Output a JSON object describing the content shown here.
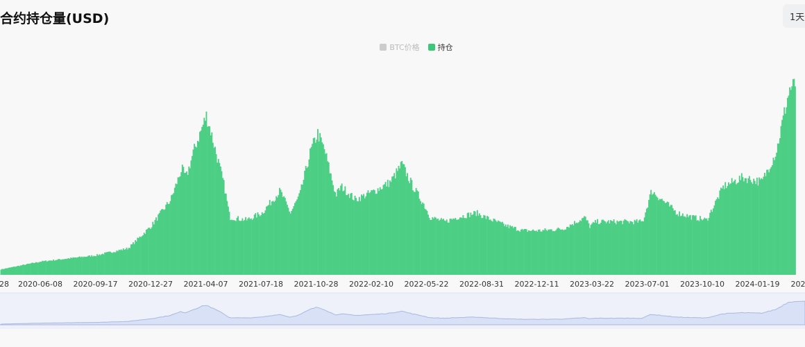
{
  "header": {
    "title": "合约持仓量(USD)",
    "range_label": "1天"
  },
  "legend": {
    "items": [
      {
        "label": "BTC价格",
        "color": "#cccccc",
        "active": false
      },
      {
        "label": "持仓",
        "color": "#3cc878",
        "active": true
      }
    ]
  },
  "colors": {
    "series": "#4ccf85",
    "slider_fill": "#d9e1f7",
    "slider_line": "#a9b8e0",
    "background": "#f8f8f8"
  },
  "chart_data": {
    "type": "bar",
    "x_tick_labels": [
      "28",
      "2020-06-08",
      "2020-09-17",
      "2020-12-27",
      "2021-04-07",
      "2021-07-18",
      "2021-10-28",
      "2022-02-10",
      "2022-05-22",
      "2022-08-31",
      "2022-12-11",
      "2023-03-22",
      "2023-07-01",
      "2023-10-10",
      "2024-01-19",
      "202"
    ],
    "series": [
      {
        "name": "持仓",
        "color": "#4ccf85",
        "x": [
          "2020-03-01",
          "2020-06-08",
          "2020-09-17",
          "2020-11-15",
          "2020-12-27",
          "2021-02-01",
          "2021-02-21",
          "2021-03-01",
          "2021-03-15",
          "2021-04-07",
          "2021-04-14",
          "2021-05-10",
          "2021-05-20",
          "2021-06-20",
          "2021-07-18",
          "2021-08-20",
          "2021-09-08",
          "2021-09-25",
          "2021-10-15",
          "2021-10-28",
          "2021-11-10",
          "2021-11-30",
          "2021-12-10",
          "2022-01-05",
          "2022-02-10",
          "2022-03-10",
          "2022-03-31",
          "2022-04-20",
          "2022-05-10",
          "2022-05-22",
          "2022-06-18",
          "2022-07-10",
          "2022-08-15",
          "2022-08-31",
          "2022-10-10",
          "2022-11-08",
          "2022-12-11",
          "2023-01-20",
          "2023-03-01",
          "2023-03-10",
          "2023-03-22",
          "2023-05-01",
          "2023-06-15",
          "2023-07-01",
          "2023-08-17",
          "2023-09-15",
          "2023-10-10",
          "2023-11-10",
          "2023-12-15",
          "2024-01-19",
          "2024-02-15",
          "2024-02-28",
          "2024-03-10",
          "2024-03-20"
        ],
        "values": [
          0.3,
          1.5,
          2.2,
          3.0,
          5.5,
          8.5,
          12.0,
          11.0,
          14.0,
          18.0,
          16.5,
          10.0,
          6.5,
          6.2,
          7.0,
          9.5,
          7.0,
          9.0,
          14.0,
          16.0,
          14.0,
          9.0,
          10.0,
          8.5,
          9.5,
          10.5,
          12.5,
          10.0,
          8.0,
          6.5,
          6.0,
          6.5,
          7.0,
          6.5,
          5.5,
          5.0,
          5.0,
          5.2,
          6.5,
          5.5,
          6.0,
          6.0,
          6.0,
          9.5,
          7.0,
          6.5,
          6.2,
          10.0,
          11.0,
          10.5,
          14.0,
          18.0,
          21.0,
          21.5
        ]
      }
    ],
    "xlabel": "",
    "ylabel": "",
    "grid": false,
    "legend_position": "top-center",
    "has_range_slider": true
  }
}
